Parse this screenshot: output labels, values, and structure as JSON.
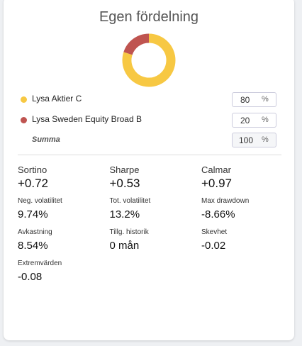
{
  "title": "Egen fördelning",
  "allocation": [
    {
      "name": "Lysa Aktier C",
      "value": 80,
      "color": "#f7c843"
    },
    {
      "name": "Lysa Sweden Equity Broad B",
      "value": 20,
      "color": "#bf5450"
    }
  ],
  "unit": "%",
  "total": {
    "label": "Summa",
    "value": 100
  },
  "metrics": [
    {
      "label": "Sortino",
      "value": "+0.72"
    },
    {
      "label": "Sharpe",
      "value": "+0.53"
    },
    {
      "label": "Calmar",
      "value": "+0.97"
    },
    {
      "label": "Neg. volatilitet",
      "value": "9.74%"
    },
    {
      "label": "Tot. volatilitet",
      "value": "13.2%"
    },
    {
      "label": "Max drawdown",
      "value": "-8.66%"
    },
    {
      "label": "Avkastning",
      "value": "8.54%"
    },
    {
      "label": "Tillg. historik",
      "value": "0 mån"
    },
    {
      "label": "Skevhet",
      "value": "-0.02"
    },
    {
      "label": "Extremvärden",
      "value": "-0.08"
    }
  ]
}
